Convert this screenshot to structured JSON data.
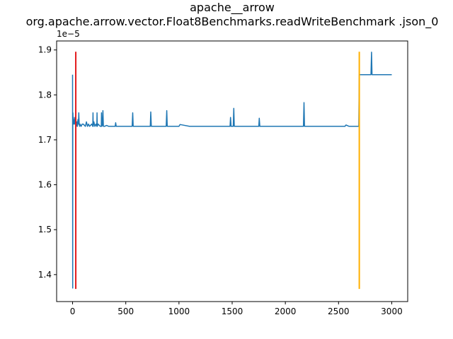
{
  "chart_data": {
    "type": "line",
    "title_line1": "apache__arrow",
    "title_line2": "org.apache.arrow.vector.Float8Benchmarks.readWriteBenchmark .json_0",
    "xlabel": "",
    "ylabel": "",
    "y_offset_label": "1e−5",
    "xlim": [
      -150,
      3150
    ],
    "ylim": [
      1.34e-05,
      1.92e-05
    ],
    "x_ticks": [
      0,
      500,
      1000,
      1500,
      2000,
      2500,
      3000
    ],
    "x_tick_labels": [
      "0",
      "500",
      "1000",
      "1500",
      "2000",
      "2500",
      "3000"
    ],
    "y_ticks": [
      1.4e-05,
      1.5e-05,
      1.6e-05,
      1.7e-05,
      1.8e-05,
      1.9e-05
    ],
    "y_tick_labels": [
      "1.4",
      "1.5",
      "1.6",
      "1.7",
      "1.8",
      "1.9"
    ],
    "grid": false,
    "series": [
      {
        "color": "#1f77b4",
        "x": [
          0,
          1,
          2,
          3,
          5,
          8,
          10,
          14,
          18,
          22,
          28,
          34,
          40,
          45,
          50,
          55,
          58,
          62,
          66,
          70,
          80,
          90,
          100,
          120,
          130,
          140,
          150,
          160,
          180,
          190,
          192,
          194,
          200,
          210,
          220,
          228,
          230,
          232,
          240,
          260,
          270,
          272,
          274,
          280,
          285,
          290,
          300,
          320,
          340,
          400,
          405,
          410,
          420,
          500,
          560,
          565,
          570,
          600,
          640,
          700,
          730,
          735,
          740,
          800,
          880,
          885,
          890,
          1000,
          1010,
          1100,
          1200,
          1300,
          1400,
          1480,
          1485,
          1490,
          1500,
          1510,
          1515,
          1520,
          1600,
          1700,
          1750,
          1755,
          1760,
          1800,
          1900,
          2000,
          2100,
          2170,
          2175,
          2180,
          2200,
          2300,
          2400,
          2500,
          2560,
          2570,
          2600,
          2650,
          2690,
          2695,
          2700,
          2710,
          2720,
          2800,
          2805,
          2810,
          2815,
          2820,
          2850,
          2900,
          2950,
          3000
        ],
        "y": [
          1.845e-05,
          1.37e-05,
          1.73e-05,
          1.76e-05,
          1.735e-05,
          1.75e-05,
          1.735e-05,
          1.745e-05,
          1.735e-05,
          1.75e-05,
          1.74e-05,
          1.73e-05,
          1.74e-05,
          1.73e-05,
          1.745e-05,
          1.735e-05,
          1.76e-05,
          1.735e-05,
          1.73e-05,
          1.735e-05,
          1.73e-05,
          1.735e-05,
          1.735e-05,
          1.73e-05,
          1.74e-05,
          1.73e-05,
          1.735e-05,
          1.73e-05,
          1.735e-05,
          1.73e-05,
          1.76e-05,
          1.73e-05,
          1.74e-05,
          1.73e-05,
          1.735e-05,
          1.73e-05,
          1.76e-05,
          1.73e-05,
          1.735e-05,
          1.73e-05,
          1.73e-05,
          1.76e-05,
          1.73e-05,
          1.732e-05,
          1.765e-05,
          1.73e-05,
          1.73e-05,
          1.732e-05,
          1.73e-05,
          1.73e-05,
          1.738e-05,
          1.73e-05,
          1.73e-05,
          1.73e-05,
          1.73e-05,
          1.76e-05,
          1.73e-05,
          1.73e-05,
          1.73e-05,
          1.73e-05,
          1.73e-05,
          1.762e-05,
          1.73e-05,
          1.73e-05,
          1.73e-05,
          1.765e-05,
          1.73e-05,
          1.73e-05,
          1.734e-05,
          1.73e-05,
          1.73e-05,
          1.73e-05,
          1.73e-05,
          1.73e-05,
          1.75e-05,
          1.73e-05,
          1.73e-05,
          1.73e-05,
          1.77e-05,
          1.73e-05,
          1.73e-05,
          1.73e-05,
          1.73e-05,
          1.748e-05,
          1.73e-05,
          1.73e-05,
          1.73e-05,
          1.73e-05,
          1.73e-05,
          1.73e-05,
          1.783e-05,
          1.73e-05,
          1.73e-05,
          1.73e-05,
          1.73e-05,
          1.73e-05,
          1.73e-05,
          1.733e-05,
          1.73e-05,
          1.73e-05,
          1.73e-05,
          1.845e-05,
          1.845e-05,
          1.845e-05,
          1.845e-05,
          1.845e-05,
          1.845e-05,
          1.895e-05,
          1.845e-05,
          1.845e-05,
          1.845e-05,
          1.845e-05,
          1.845e-05,
          1.845e-05
        ]
      }
    ],
    "vlines": [
      {
        "x": 30,
        "ymin": 1.368e-05,
        "ymax": 1.896e-05,
        "color": "#e31a1c"
      },
      {
        "x": 2695,
        "ymin": 1.368e-05,
        "ymax": 1.896e-05,
        "color": "#ffb000"
      }
    ]
  }
}
